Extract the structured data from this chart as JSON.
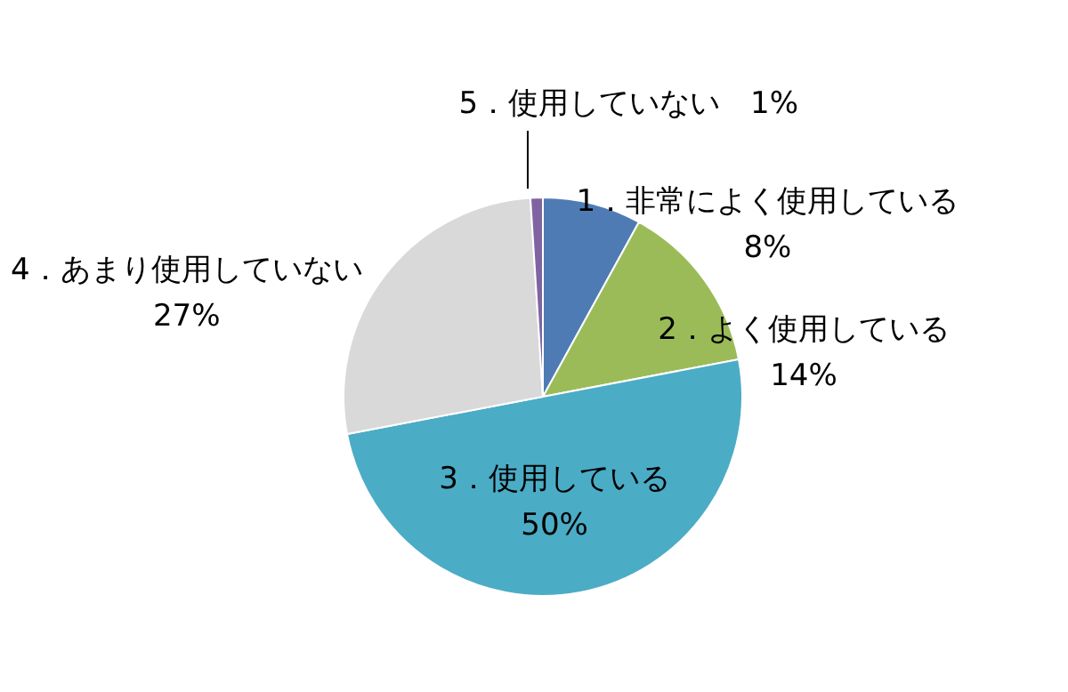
{
  "chart_data": {
    "type": "pie",
    "categories": [
      "1．非常によく使用している",
      "2．よく使用している",
      "3．使用している",
      "4．あまり使用していない",
      "5．使用していない"
    ],
    "values": [
      8,
      14,
      50,
      27,
      1
    ],
    "value_labels": [
      "8%",
      "14%",
      "50%",
      "27%",
      "1%"
    ],
    "colors": [
      "#4f7bb5",
      "#9bbb59",
      "#4bacc6",
      "#d9d9d9",
      "#8064a2"
    ]
  }
}
